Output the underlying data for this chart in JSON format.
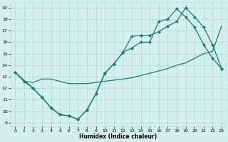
{
  "xlabel": "Humidex (Indice chaleur)",
  "bg_color": "#d4f0ec",
  "line_color": "#1e7a6e",
  "grid_color": "#b8ddd8",
  "x_ticks": [
    0,
    1,
    2,
    3,
    4,
    5,
    6,
    7,
    8,
    9,
    10,
    11,
    12,
    13,
    14,
    15,
    16,
    17,
    18,
    19,
    20,
    21,
    22,
    23
  ],
  "y_ticks": [
    9,
    10,
    11,
    12,
    13,
    14,
    15,
    16,
    17,
    18,
    19
  ],
  "xlim": [
    -0.5,
    23.5
  ],
  "ylim": [
    8.7,
    19.5
  ],
  "line1_x": [
    0,
    1,
    2,
    3,
    4,
    5,
    6,
    7,
    8,
    9,
    10,
    11,
    12,
    13,
    14,
    15,
    16,
    17,
    18,
    19,
    20,
    21,
    22,
    23
  ],
  "line1_y": [
    13.4,
    12.6,
    12.0,
    11.2,
    10.3,
    9.7,
    9.6,
    9.3,
    10.1,
    11.5,
    13.3,
    14.1,
    15.1,
    15.5,
    16.0,
    16.0,
    17.8,
    18.0,
    18.9,
    18.2,
    17.3,
    15.8,
    14.6,
    13.7
  ],
  "line2_x": [
    0,
    1,
    2,
    3,
    4,
    5,
    6,
    7,
    8,
    9,
    10,
    11,
    12,
    13,
    14,
    15,
    16,
    17,
    18,
    19,
    20,
    21,
    22,
    23
  ],
  "line2_y": [
    13.4,
    12.6,
    12.5,
    12.8,
    12.8,
    12.6,
    12.4,
    12.4,
    12.4,
    12.5,
    12.6,
    12.7,
    12.8,
    12.9,
    13.1,
    13.3,
    13.5,
    13.7,
    14.0,
    14.2,
    14.6,
    15.0,
    15.2,
    17.4
  ],
  "line3_x": [
    0,
    2,
    3,
    4,
    5,
    6,
    7,
    8,
    9,
    10,
    11,
    12,
    13,
    14,
    15,
    16,
    17,
    18,
    19,
    20,
    21,
    22,
    23
  ],
  "line3_y": [
    13.4,
    12.0,
    11.2,
    10.3,
    9.7,
    9.6,
    9.3,
    10.1,
    11.5,
    13.3,
    14.1,
    15.1,
    16.5,
    16.6,
    16.6,
    16.9,
    17.4,
    17.8,
    19.0,
    18.2,
    17.3,
    15.8,
    13.7
  ]
}
